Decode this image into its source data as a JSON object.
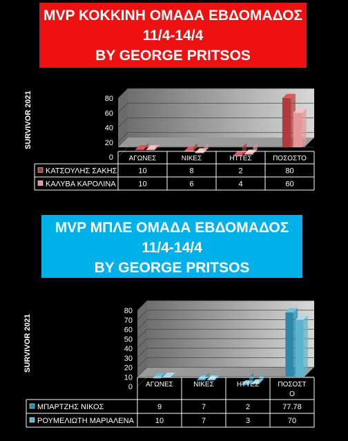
{
  "chart_data": [
    {
      "type": "bar",
      "title_lines": [
        "MVP ΚΟΚΚΙΝΗ ΟΜΑΔΑ ΕΒΔΟΜΑΔΟΣ",
        "11/4-14/4",
        "BY GEORGE PRITSOS"
      ],
      "ylabel": "SURVIVOR 2021",
      "categories": [
        "ΑΓΩΝΕΣ",
        "ΝΙΚΕΣ",
        "ΗΤΤΕΣ",
        "ΠΟΣΟΣΤΟ"
      ],
      "yticks": [
        "0",
        "20",
        "40",
        "60",
        "80"
      ],
      "ylim": [
        0,
        80
      ],
      "series": [
        {
          "name": "ΚΑΤΣΟΥΛΗΣ ΣΑΚΗΣ",
          "values": [
            10,
            8,
            2,
            80
          ],
          "labels": [
            "10",
            "8",
            "2",
            "80"
          ],
          "color": "#b03a3c",
          "color_light": "#d85a5c"
        },
        {
          "name": "ΚΑΛΥΒΑ ΚΑΡΟΛΙΝΑ",
          "values": [
            10,
            6,
            4,
            60
          ],
          "labels": [
            "10",
            "6",
            "4",
            "60"
          ],
          "color": "#e39798",
          "color_light": "#f2c2c3"
        }
      ],
      "grid": true,
      "legend": "data-table"
    },
    {
      "type": "bar",
      "title_lines": [
        "MVP ΜΠΛΕ ΟΜΑΔΑ ΕΒΔΟΜΑΔΟΣ",
        "11/4-14/4",
        "BY GEORGE PRITSOS"
      ],
      "ylabel": "SURVIVOR 2021",
      "categories": [
        "ΑΓΩΝΕΣ",
        "ΝΙΚΕΣ",
        "ΗΤΤΕΣ",
        "ΠΟΣΟΣΤ Ο"
      ],
      "yticks": [
        "0",
        "10",
        "20",
        "30",
        "40",
        "50",
        "60",
        "70",
        "80"
      ],
      "ylim": [
        0,
        80
      ],
      "series": [
        {
          "name": "ΜΠΑΡΤΖΗΣ ΝΙΚΟΣ",
          "values": [
            9,
            7,
            2,
            77.78
          ],
          "labels": [
            "9",
            "7",
            "2",
            "77.78"
          ],
          "color": "#2b8aaa",
          "color_light": "#6cc3de"
        },
        {
          "name": "ΡΟΥΜΕΛΙΩΤΗ ΜΑΡΙΑΛΕΝΑ",
          "values": [
            10,
            7,
            3,
            70
          ],
          "labels": [
            "10",
            "7",
            "3",
            "70"
          ],
          "color": "#5db4cf",
          "color_light": "#a8dcec"
        }
      ],
      "grid": true,
      "legend": "data-table"
    }
  ]
}
